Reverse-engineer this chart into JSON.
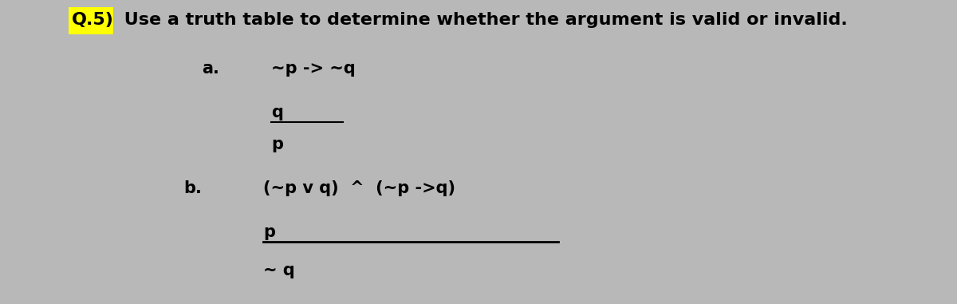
{
  "title_prefix": "Q.5)",
  "title_text": " Use a truth table to determine whether the argument is valid or invalid.",
  "title_prefix_bg": "#FFFF00",
  "bg_color": "#b8b8b8",
  "a_label": "a.",
  "a_premise": "~p -> ~q",
  "a_given": "q",
  "a_conclusion": "p",
  "b_label": "b.",
  "b_premise": "(~p v q)  ^  (~p ->q)",
  "b_given": "p",
  "b_conclusion": "~ q",
  "font_size_title": 16,
  "font_size_body": 15
}
